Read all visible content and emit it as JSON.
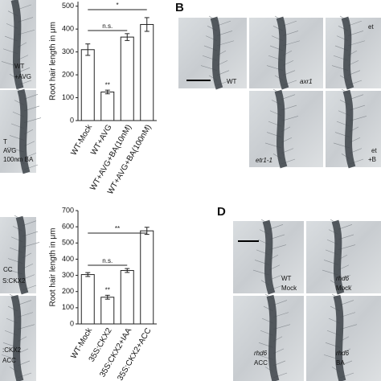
{
  "panel_labels": [
    "B",
    "D"
  ],
  "image_labels": [
    "WT",
    "+AVG",
    "T",
    "AVG",
    "100nm BA",
    "CC",
    "S:CKX2",
    ":CKX2",
    "ACC",
    "WT",
    "axr1",
    "et",
    "etr1-1",
    "et",
    "+B",
    "WT",
    "Mock",
    "rhd6",
    "Mock",
    "rhd6",
    "ACC",
    "rhd6",
    "BA"
  ],
  "chart_data": [
    {
      "type": "bar",
      "ylabel": "Root hair length in μm",
      "categories": [
        "WT-Mock",
        "WT+AVG",
        "WT+AVG+BA(10nM)",
        "WT+AVG+BA(100nM)"
      ],
      "values": [
        310,
        125,
        365,
        420
      ],
      "errors": [
        25,
        8,
        15,
        30
      ],
      "ylim": [
        0,
        520
      ],
      "yticks": [
        0,
        100,
        200,
        300,
        400,
        500
      ],
      "annotations": [
        "*",
        "n.s.",
        "**"
      ],
      "color": "#ffffff"
    },
    {
      "type": "bar",
      "ylabel": "Root hair length in μm",
      "categories": [
        "WT-Mock",
        "35S:CKX2",
        "35S:CKX2+IAA",
        "35S:CKX2+ACC"
      ],
      "values": [
        305,
        165,
        330,
        575
      ],
      "errors": [
        12,
        12,
        12,
        22
      ],
      "ylim": [
        0,
        700
      ],
      "yticks": [
        0,
        100,
        200,
        300,
        400,
        500,
        600,
        700
      ],
      "annotations": [
        "**",
        "n.s.",
        "**"
      ],
      "color": "#ffffff"
    }
  ]
}
